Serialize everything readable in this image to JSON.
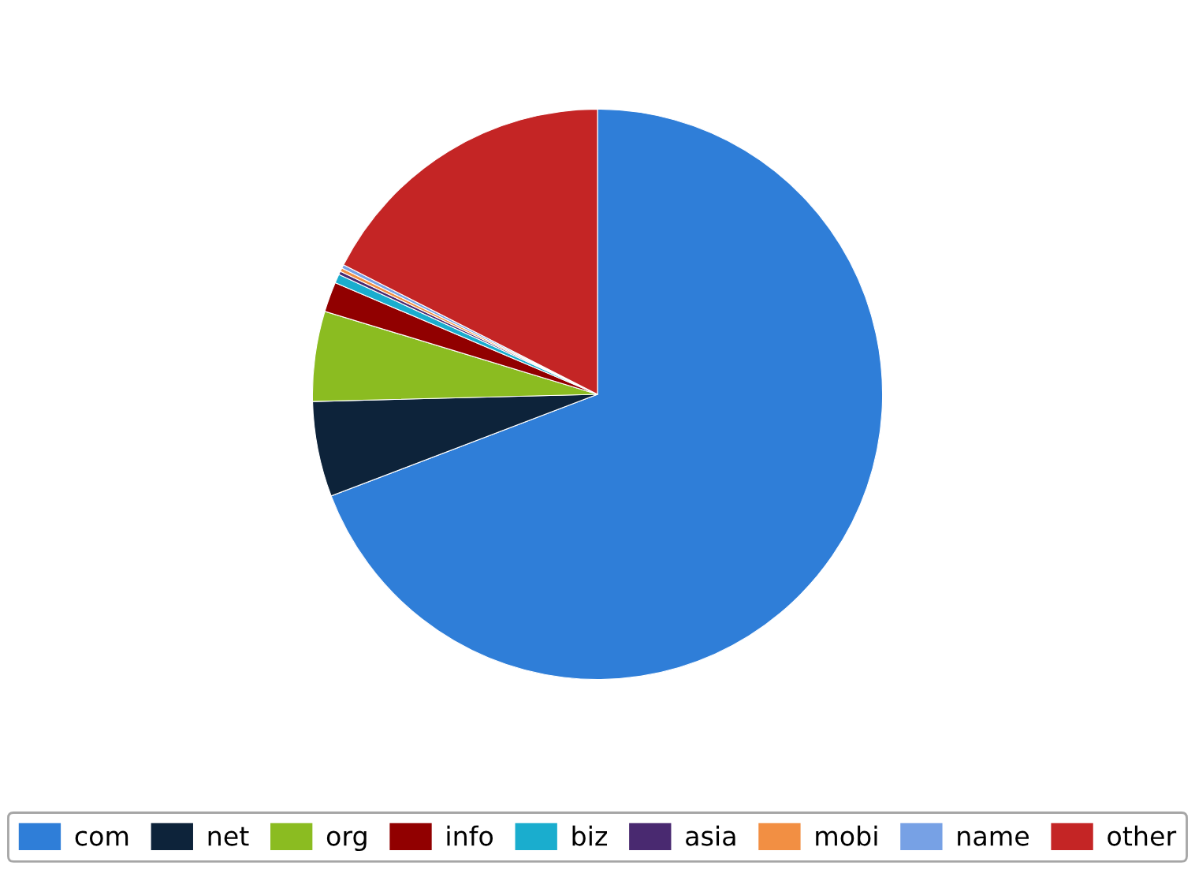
{
  "chart_data": {
    "type": "pie",
    "categories": [
      "com",
      "net",
      "org",
      "info",
      "biz",
      "asia",
      "mobi",
      "name",
      "other"
    ],
    "values": [
      69.2,
      5.4,
      5.1,
      1.7,
      0.5,
      0.2,
      0.2,
      0.2,
      17.5
    ],
    "colors": [
      "#2f7ed8",
      "#0d233a",
      "#8bbc21",
      "#910000",
      "#1aadce",
      "#492970",
      "#f28f43",
      "#77a1e5",
      "#c42525"
    ],
    "legend": "bottom"
  }
}
